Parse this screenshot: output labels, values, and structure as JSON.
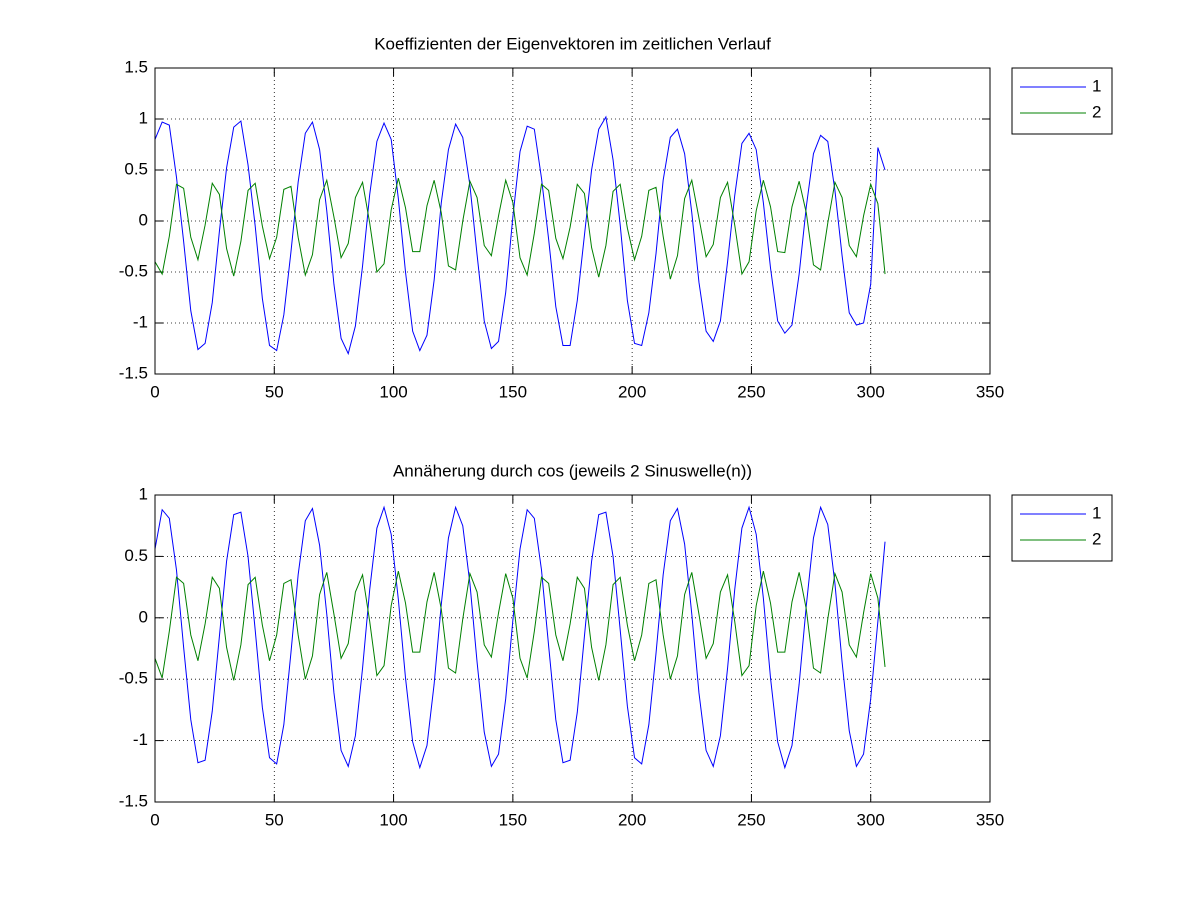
{
  "chart_data": [
    {
      "type": "line",
      "title": "Koeffizienten der Eigenvektoren im zeitlichen Verlauf",
      "x": [
        0,
        3,
        6,
        9,
        12,
        15,
        18,
        21,
        24,
        27,
        30,
        33,
        36,
        39,
        42,
        45,
        48,
        51,
        54,
        57,
        60,
        63,
        66,
        69,
        72,
        75,
        78,
        81,
        84,
        87,
        90,
        93,
        96,
        99,
        102,
        105,
        108,
        111,
        114,
        117,
        120,
        123,
        126,
        129,
        132,
        135,
        138,
        141,
        144,
        147,
        150,
        153,
        156,
        159,
        162,
        165,
        168,
        171,
        174,
        177,
        180,
        183,
        186,
        189,
        192,
        195,
        198,
        201,
        204,
        207,
        210,
        213,
        216,
        219,
        222,
        225,
        228,
        231,
        234,
        237,
        240,
        243,
        246,
        249,
        252,
        255,
        258,
        261,
        264,
        267,
        270,
        273,
        276,
        279,
        282,
        285,
        288,
        291,
        294,
        297,
        300,
        303,
        306
      ],
      "series": [
        {
          "name": "1",
          "color": "#0000ff",
          "values": [
            0.8,
            0.97,
            0.94,
            0.43,
            -0.2,
            -0.88,
            -1.26,
            -1.2,
            -0.8,
            -0.1,
            0.52,
            0.92,
            0.98,
            0.55,
            -0.05,
            -0.76,
            -1.22,
            -1.27,
            -0.92,
            -0.3,
            0.38,
            0.86,
            0.97,
            0.7,
            0.1,
            -0.62,
            -1.15,
            -1.3,
            -1.03,
            -0.44,
            0.26,
            0.78,
            0.96,
            0.8,
            0.22,
            -0.5,
            -1.08,
            -1.27,
            -1.12,
            -0.58,
            0.18,
            0.7,
            0.95,
            0.82,
            0.35,
            -0.33,
            -0.98,
            -1.25,
            -1.18,
            -0.7,
            0.04,
            0.68,
            0.93,
            0.9,
            0.42,
            -0.18,
            -0.84,
            -1.22,
            -1.22,
            -0.78,
            -0.14,
            0.5,
            0.9,
            1.02,
            0.6,
            -0.04,
            -0.78,
            -1.2,
            -1.22,
            -0.9,
            -0.32,
            0.4,
            0.82,
            0.9,
            0.66,
            0.08,
            -0.6,
            -1.08,
            -1.18,
            -0.98,
            -0.4,
            0.25,
            0.76,
            0.86,
            0.7,
            0.18,
            -0.46,
            -0.98,
            -1.1,
            -1.02,
            -0.52,
            0.14,
            0.66,
            0.84,
            0.78,
            0.3,
            -0.34,
            -0.9,
            -1.02,
            -1.0,
            -0.62,
            0.72,
            0.5
          ]
        },
        {
          "name": "2",
          "color": "#008000",
          "values": [
            -0.4,
            -0.52,
            -0.15,
            0.36,
            0.32,
            -0.16,
            -0.38,
            -0.04,
            0.37,
            0.26,
            -0.27,
            -0.54,
            -0.2,
            0.3,
            0.37,
            -0.05,
            -0.37,
            -0.16,
            0.31,
            0.34,
            -0.16,
            -0.53,
            -0.33,
            0.21,
            0.4,
            0.04,
            -0.36,
            -0.22,
            0.23,
            0.38,
            -0.02,
            -0.5,
            -0.42,
            0.11,
            0.42,
            0.13,
            -0.3,
            -0.3,
            0.15,
            0.4,
            0.08,
            -0.44,
            -0.48,
            0.0,
            0.39,
            0.23,
            -0.24,
            -0.34,
            0.05,
            0.4,
            0.18,
            -0.36,
            -0.53,
            -0.12,
            0.36,
            0.3,
            -0.17,
            -0.37,
            -0.06,
            0.36,
            0.27,
            -0.26,
            -0.55,
            -0.24,
            0.29,
            0.36,
            -0.07,
            -0.38,
            -0.15,
            0.3,
            0.33,
            -0.15,
            -0.57,
            -0.34,
            0.22,
            0.4,
            0.03,
            -0.35,
            -0.23,
            0.23,
            0.38,
            -0.04,
            -0.52,
            -0.4,
            0.1,
            0.4,
            0.14,
            -0.3,
            -0.31,
            0.14,
            0.39,
            0.08,
            -0.43,
            -0.48,
            -0.02,
            0.38,
            0.23,
            -0.24,
            -0.35,
            0.05,
            0.36,
            0.17,
            -0.52
          ]
        }
      ],
      "xlim": [
        0,
        350
      ],
      "xticks": [
        0,
        50,
        100,
        150,
        200,
        250,
        300,
        350
      ],
      "ylim": [
        -1.5,
        1.5
      ],
      "yticks": [
        -1.5,
        -1,
        -0.5,
        0,
        0.5,
        1,
        1.5
      ],
      "grid": true,
      "legend": "northeastoutside"
    },
    {
      "type": "line",
      "title": "Annäherung durch cos (jeweils 2 Sinuswelle(n))",
      "x": [
        0,
        3,
        6,
        9,
        12,
        15,
        18,
        21,
        24,
        27,
        30,
        33,
        36,
        39,
        42,
        45,
        48,
        51,
        54,
        57,
        60,
        63,
        66,
        69,
        72,
        75,
        78,
        81,
        84,
        87,
        90,
        93,
        96,
        99,
        102,
        105,
        108,
        111,
        114,
        117,
        120,
        123,
        126,
        129,
        132,
        135,
        138,
        141,
        144,
        147,
        150,
        153,
        156,
        159,
        162,
        165,
        168,
        171,
        174,
        177,
        180,
        183,
        186,
        189,
        192,
        195,
        198,
        201,
        204,
        207,
        210,
        213,
        216,
        219,
        222,
        225,
        228,
        231,
        234,
        237,
        240,
        243,
        246,
        249,
        252,
        255,
        258,
        261,
        264,
        267,
        270,
        273,
        276,
        279,
        282,
        285,
        288,
        291,
        294,
        297,
        300,
        303,
        306
      ],
      "series": [
        {
          "name": "1",
          "color": "#0000ff",
          "values": [
            0.56,
            0.88,
            0.81,
            0.39,
            -0.24,
            -0.83,
            -1.18,
            -1.16,
            -0.76,
            -0.15,
            0.46,
            0.84,
            0.86,
            0.5,
            -0.1,
            -0.73,
            -1.14,
            -1.19,
            -0.87,
            -0.28,
            0.35,
            0.79,
            0.89,
            0.59,
            0.03,
            -0.61,
            -1.08,
            -1.21,
            -0.96,
            -0.41,
            0.23,
            0.73,
            0.9,
            0.68,
            0.15,
            -0.49,
            -1.01,
            -1.22,
            -1.04,
            -0.54,
            0.11,
            0.65,
            0.9,
            0.75,
            0.28,
            -0.36,
            -0.93,
            -1.21,
            -1.11,
            -0.66,
            -0.02,
            0.56,
            0.88,
            0.81,
            0.39,
            -0.23,
            -0.83,
            -1.18,
            -1.16,
            -0.77,
            -0.15,
            0.46,
            0.84,
            0.86,
            0.5,
            -0.1,
            -0.72,
            -1.14,
            -1.19,
            -0.87,
            -0.29,
            0.35,
            0.79,
            0.89,
            0.6,
            0.03,
            -0.61,
            -1.08,
            -1.21,
            -0.96,
            -0.41,
            0.23,
            0.73,
            0.9,
            0.68,
            0.16,
            -0.49,
            -1.01,
            -1.22,
            -1.04,
            -0.54,
            0.1,
            0.65,
            0.9,
            0.76,
            0.28,
            -0.36,
            -0.92,
            -1.21,
            -1.11,
            -0.66,
            -0.03,
            0.62
          ]
        },
        {
          "name": "2",
          "color": "#008000",
          "values": [
            -0.33,
            -0.49,
            -0.11,
            0.33,
            0.28,
            -0.14,
            -0.35,
            -0.05,
            0.33,
            0.24,
            -0.24,
            -0.51,
            -0.22,
            0.27,
            0.33,
            -0.06,
            -0.35,
            -0.14,
            0.28,
            0.31,
            -0.14,
            -0.5,
            -0.31,
            0.19,
            0.37,
            0.03,
            -0.33,
            -0.21,
            0.21,
            0.35,
            -0.03,
            -0.47,
            -0.39,
            0.1,
            0.38,
            0.12,
            -0.28,
            -0.28,
            0.13,
            0.37,
            0.07,
            -0.41,
            -0.45,
            -0.01,
            0.36,
            0.21,
            -0.22,
            -0.32,
            0.04,
            0.36,
            0.16,
            -0.33,
            -0.49,
            -0.11,
            0.33,
            0.28,
            -0.14,
            -0.35,
            -0.05,
            0.33,
            0.24,
            -0.24,
            -0.51,
            -0.22,
            0.27,
            0.33,
            -0.06,
            -0.35,
            -0.14,
            0.28,
            0.31,
            -0.14,
            -0.5,
            -0.31,
            0.19,
            0.37,
            0.03,
            -0.33,
            -0.21,
            0.21,
            0.35,
            -0.03,
            -0.47,
            -0.39,
            0.1,
            0.38,
            0.12,
            -0.28,
            -0.28,
            0.13,
            0.37,
            0.07,
            -0.41,
            -0.45,
            -0.01,
            0.36,
            0.21,
            -0.22,
            -0.32,
            0.04,
            0.36,
            0.16,
            -0.4
          ]
        }
      ],
      "xlim": [
        0,
        350
      ],
      "xticks": [
        0,
        50,
        100,
        150,
        200,
        250,
        300,
        350
      ],
      "ylim": [
        -1.5,
        1
      ],
      "yticks": [
        -1.5,
        -1,
        -0.5,
        0,
        0.5,
        1
      ],
      "grid": true,
      "legend": "northeastoutside"
    }
  ]
}
